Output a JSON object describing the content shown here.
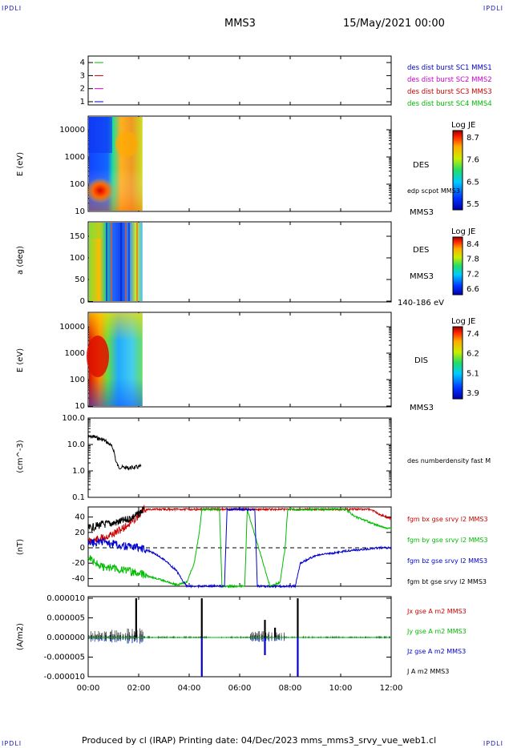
{
  "header": {
    "corner_tl": "IPDLI",
    "corner_tr": "IPDLI",
    "corner_bl": "IPDLI",
    "corner_br": "IPDLI",
    "spacecraft": "MMS3",
    "date": "15/May/2021 00:00"
  },
  "footer": {
    "text": "Produced by cl (IRAP)   Printing date: 04/Dec/2023   mms_mms3_srvy_vue_web1.cl"
  },
  "chart_data": [
    {
      "type": "line",
      "panel": "burst-availability",
      "yticks": [
        "4",
        "3",
        "2",
        "1"
      ],
      "legend": [
        {
          "name": "des dist burst SC1 MMS1",
          "color": "#0000cc"
        },
        {
          "name": "des dist burst SC2 MMS2",
          "color": "#cc00cc"
        },
        {
          "name": "des dist burst SC3 MMS3",
          "color": "#cc0000"
        },
        {
          "name": "des dist burst SC4 MMS4",
          "color": "#00bb00"
        }
      ],
      "segments": [
        {
          "y": 4,
          "color": "#00bb00",
          "x": [
            0.25,
            0.6
          ]
        },
        {
          "y": 3,
          "color": "#cc0000",
          "x": [
            0.25,
            0.6
          ]
        },
        {
          "y": 2,
          "color": "#cc00cc",
          "x": [
            0.25,
            0.6
          ]
        },
        {
          "y": 1,
          "color": "#0000cc",
          "x": [
            0.25,
            0.6
          ]
        }
      ]
    },
    {
      "type": "heatmap",
      "panel": "des-energy",
      "ylabel": "E (eV)",
      "yticks": [
        "10000",
        "1000",
        "100",
        "10"
      ],
      "right_labels": [
        "DES",
        "edp scpot MMS3",
        "MMS3"
      ],
      "colorbar": {
        "title": "Log JE",
        "ticks": [
          "8.7",
          "7.6",
          "6.5",
          "5.5"
        ]
      },
      "x_range_hours": [
        0,
        2.15
      ]
    },
    {
      "type": "heatmap",
      "panel": "des-pitch",
      "ylabel": "a (deg)",
      "yticks": [
        "150",
        "100",
        "50",
        "0"
      ],
      "right_labels": [
        "DES",
        "MMS3",
        "140-186 eV"
      ],
      "colorbar": {
        "title": "Log JE",
        "ticks": [
          "8.4",
          "7.8",
          "7.2",
          "6.6"
        ]
      },
      "x_range_hours": [
        0,
        2.15
      ]
    },
    {
      "type": "heatmap",
      "panel": "dis-energy",
      "ylabel": "E (eV)",
      "yticks": [
        "10000",
        "1000",
        "100",
        "10"
      ],
      "right_labels": [
        "DIS",
        "MMS3"
      ],
      "colorbar": {
        "title": "Log JE",
        "ticks": [
          "7.4",
          "6.2",
          "5.1",
          "3.9"
        ]
      },
      "x_range_hours": [
        0,
        2.15
      ]
    },
    {
      "type": "line",
      "panel": "density",
      "ylabel": "(cm^-3)",
      "yticks": [
        "100.0",
        "10.0",
        "1.0",
        "0.1"
      ],
      "ylim": [
        0.1,
        100
      ],
      "series": [
        {
          "name": "des numberdensity fast M",
          "color": "#000000",
          "x": [
            0,
            0.2,
            0.4,
            0.6,
            0.75,
            0.9,
            1.0,
            1.05,
            1.1,
            1.2,
            1.4,
            1.6,
            1.8,
            2.0,
            2.1
          ],
          "y": [
            19,
            20,
            17,
            15,
            12,
            9,
            6.5,
            4,
            2.2,
            1.4,
            1.35,
            1.3,
            1.35,
            1.4,
            1.5
          ]
        }
      ]
    },
    {
      "type": "line",
      "panel": "magnetic-field",
      "ylabel": "(nT)",
      "yticks": [
        "40",
        "20",
        "0",
        "-20",
        "-40"
      ],
      "ylim": [
        -50,
        50
      ],
      "series": [
        {
          "name": "fgm bx gse srvy l2 MMS3",
          "color": "#cc0000",
          "x": [
            0,
            0.5,
            1.0,
            1.5,
            2.0,
            2.2,
            11.2,
            11.5,
            11.8,
            12.0
          ],
          "y": [
            8,
            12,
            18,
            28,
            42,
            50,
            50,
            44,
            40,
            38
          ]
        },
        {
          "name": "fgm by gse srvy l2 MMS3",
          "color": "#00bb00",
          "x": [
            0,
            0.3,
            0.6,
            1.0,
            1.5,
            2.0,
            2.5,
            3.0,
            3.5,
            3.9,
            4.2,
            4.4,
            4.5,
            5.2,
            5.3,
            6.2,
            6.3,
            7.2,
            7.6,
            7.8,
            7.9,
            10.2,
            10.6,
            11.0,
            11.4,
            11.8,
            12.0
          ],
          "y": [
            -10,
            -20,
            -25,
            -26,
            -30,
            -33,
            -38,
            -43,
            -48,
            -45,
            -20,
            20,
            50,
            50,
            -50,
            -50,
            50,
            -50,
            -45,
            0,
            50,
            50,
            40,
            35,
            30,
            26,
            25
          ]
        },
        {
          "name": "fgm bz gse srvy l2 MMS3",
          "color": "#0000cc",
          "x": [
            0,
            0.5,
            1.0,
            1.5,
            2.0,
            2.5,
            3.0,
            3.5,
            3.9,
            5.4,
            5.5,
            6.6,
            6.7,
            8.2,
            8.4,
            8.7,
            9.0,
            9.5,
            10.0,
            10.5,
            11.0,
            11.5,
            12.0
          ],
          "y": [
            5,
            8,
            5,
            2,
            0,
            -5,
            -15,
            -30,
            -50,
            -50,
            50,
            50,
            -50,
            -50,
            -20,
            -15,
            -10,
            -8,
            -5,
            -3,
            -2,
            0,
            0
          ]
        },
        {
          "name": "fgm bt gse srvy l2 MMS3",
          "color": "#000000",
          "x": [
            0,
            0.5,
            1.0,
            1.5,
            2.0,
            2.2
          ],
          "y": [
            25,
            30,
            32,
            36,
            44,
            50
          ]
        }
      ]
    },
    {
      "type": "line",
      "panel": "current-density",
      "ylabel": "(A/m2)",
      "yticks": [
        "0.000010",
        "0.000005",
        "0.000000",
        "-0.000005",
        "-0.000010"
      ],
      "ylim": [
        -1e-05,
        1e-05
      ],
      "xticks": [
        "00:00",
        "02:00",
        "04:00",
        "06:00",
        "08:00",
        "10:00",
        "12:00"
      ],
      "series": [
        {
          "name": "Jx gse A m2 MMS3",
          "color": "#cc0000"
        },
        {
          "name": "Jy gse A m2 MMS3",
          "color": "#00bb00"
        },
        {
          "name": "Jz gse A m2 MMS3",
          "color": "#0000cc"
        },
        {
          "name": "J A m2 MMS3",
          "color": "#000000"
        }
      ],
      "spikes": [
        {
          "x": 1.9,
          "y": 1e-05,
          "series": "J"
        },
        {
          "x": 4.5,
          "y": 1e-05,
          "series": "J"
        },
        {
          "x": 4.5,
          "y": -1e-05,
          "series": "Jz"
        },
        {
          "x": 7.0,
          "y": 4.5e-06,
          "series": "J"
        },
        {
          "x": 7.0,
          "y": -4.5e-06,
          "series": "Jz"
        },
        {
          "x": 7.4,
          "y": 2.5e-06,
          "series": "J"
        },
        {
          "x": 8.3,
          "y": 1e-05,
          "series": "J"
        },
        {
          "x": 8.3,
          "y": -1e-05,
          "series": "Jz"
        }
      ]
    }
  ]
}
